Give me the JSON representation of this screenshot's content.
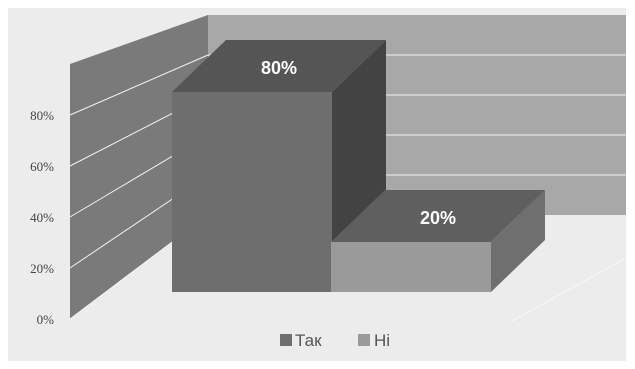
{
  "chart_data": {
    "type": "bar",
    "categories": [
      "Так",
      "Ні"
    ],
    "values": [
      80,
      20
    ],
    "data_labels": [
      "80%",
      "20%"
    ],
    "ylim": [
      0,
      100
    ],
    "y_tick_values": [
      0,
      20,
      40,
      60,
      80
    ],
    "y_tick_labels": [
      "0%",
      "20%",
      "40%",
      "60%",
      "80%"
    ],
    "grid": true,
    "legend_position": "bottom",
    "legend": [
      {
        "label": "Так",
        "color": "#6e6e6e"
      },
      {
        "label": "Ні",
        "color": "#9a9a9a"
      }
    ]
  },
  "colors": {
    "background": "#ffffff",
    "panel": "#ececec",
    "wall_back": "#a8a8a8",
    "wall_side": "#7a7a7a",
    "bar1_front": "#6e6e6e",
    "bar1_top": "#555555",
    "bar1_side": "#434343",
    "bar2_front": "#9a9a9a",
    "bar2_top": "#5f5f5f",
    "bar2_side": "#6f6f6f",
    "tick_text": "#444444",
    "label_text": "#ffffff",
    "legend_text": "#555555"
  }
}
